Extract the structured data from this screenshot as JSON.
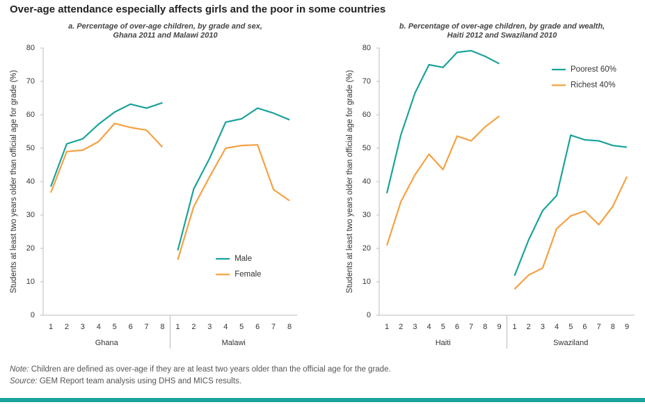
{
  "title": "Over-age attendance especially affects girls and the poor in some countries",
  "chart_data": [
    {
      "type": "line",
      "title": "a. Percentage of over-age children, by grade and sex,",
      "subtitle": "Ghana 2011 and Malawi 2010",
      "ylabel": "Students at least two years older than official age for grade (%)",
      "ylim": [
        0,
        80
      ],
      "yticks": [
        0,
        10,
        20,
        30,
        40,
        50,
        60,
        70,
        80
      ],
      "groups": [
        "Ghana",
        "Malawi"
      ],
      "categories": [
        [
          "1",
          "2",
          "3",
          "4",
          "5",
          "6",
          "7",
          "8"
        ],
        [
          "1",
          "2",
          "3",
          "4",
          "5",
          "6",
          "7",
          "8"
        ]
      ],
      "legend": "lower right",
      "series": [
        {
          "name": "Male",
          "color": "#1aa39a",
          "values": [
            [
              38.5,
              51.3,
              52.8,
              57.2,
              60.8,
              63.2,
              62,
              63.6
            ],
            [
              19.4,
              37.8,
              47,
              57.8,
              58.8,
              62,
              60.5,
              58.5
            ]
          ]
        },
        {
          "name": "Female",
          "color": "#f5a142",
          "values": [
            [
              36.7,
              49,
              49.4,
              52,
              57.4,
              56.2,
              55.4,
              50.3
            ],
            [
              16.6,
              32.5,
              41.5,
              50,
              50.8,
              51,
              37.6,
              34.3
            ]
          ]
        }
      ]
    },
    {
      "type": "line",
      "title": "b. Percentage of over-age children, by grade and wealth,",
      "subtitle": "Haiti 2012 and Swaziland 2010",
      "ylabel": "Students at least two years older than official age for grade (%)",
      "ylim": [
        0,
        80
      ],
      "yticks": [
        0,
        10,
        20,
        30,
        40,
        50,
        60,
        70,
        80
      ],
      "groups": [
        "Haiti",
        "Swaziland"
      ],
      "categories": [
        [
          "1",
          "2",
          "3",
          "4",
          "5",
          "6",
          "7",
          "8",
          "9"
        ],
        [
          "1",
          "2",
          "3",
          "4",
          "5",
          "6",
          "7",
          "8",
          "9"
        ]
      ],
      "legend": "upper right",
      "series": [
        {
          "name": "Poorest 60%",
          "color": "#1aa39a",
          "values": [
            [
              36.5,
              54,
              66.5,
              75,
              74.2,
              78.7,
              79.2,
              77.5,
              75.3
            ],
            [
              11.8,
              22.5,
              31.3,
              35.8,
              53.9,
              52.5,
              52.2,
              50.8,
              50.3
            ]
          ]
        },
        {
          "name": "Richest 40%",
          "color": "#f5a142",
          "values": [
            [
              20.9,
              34,
              42,
              48.2,
              43.6,
              53.6,
              52.2,
              56.4,
              59.6
            ],
            [
              7.8,
              12,
              14.1,
              25.9,
              29.7,
              31.2,
              27.1,
              32.6,
              41.5
            ]
          ]
        }
      ]
    }
  ],
  "note_label": "Note:",
  "note": "Children are defined as over-age if they are at least two years older than the official age for the grade.",
  "source_label": "Source:",
  "source": "GEM Report team analysis using DHS and MICS results."
}
